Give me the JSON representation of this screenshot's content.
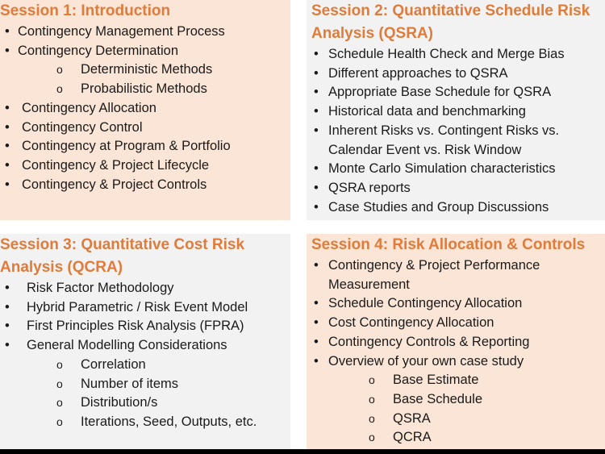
{
  "sessions": [
    {
      "title": "Session 1: Introduction",
      "items": [
        {
          "text": "Contingency Management Process"
        },
        {
          "text": "Contingency Determination",
          "sub": [
            "Deterministic Methods",
            "Probabilistic Methods"
          ]
        },
        {
          "text": "Contingency Allocation"
        },
        {
          "text": "Contingency Control"
        },
        {
          "text": "Contingency at Program & Portfolio"
        },
        {
          "text": "Contingency & Project Lifecycle"
        },
        {
          "text": "Contingency & Project Controls"
        }
      ]
    },
    {
      "title": "Session 2: Quantitative Schedule Risk Analysis (QSRA)",
      "items": [
        {
          "text": "Schedule Health Check and Merge Bias"
        },
        {
          "text": "Different approaches to QSRA"
        },
        {
          "text": "Appropriate Base Schedule for QSRA"
        },
        {
          "text": "Historical data and benchmarking"
        },
        {
          "text": "Inherent Risks vs. Contingent Risks vs. Calendar Event vs. Risk Window"
        },
        {
          "text": "Monte Carlo Simulation characteristics"
        },
        {
          "text": "QSRA reports"
        },
        {
          "text": "Case Studies and Group Discussions"
        }
      ]
    },
    {
      "title": "Session 3: Quantitative Cost Risk Analysis (QCRA)",
      "items": [
        {
          "text": "Risk Factor Methodology"
        },
        {
          "text": "Hybrid Parametric / Risk Event Model"
        },
        {
          "text": "First Principles Risk Analysis (FPRA)"
        },
        {
          "text": "General Modelling Considerations",
          "sub": [
            "Correlation",
            "Number of items",
            "Distribution/s",
            "Iterations, Seed, Outputs, etc."
          ]
        }
      ]
    },
    {
      "title": "Session 4: Risk Allocation & Controls",
      "items": [
        {
          "text": "Contingency & Project Performance Measurement"
        },
        {
          "text": "Schedule Contingency Allocation"
        },
        {
          "text": "Cost Contingency Allocation"
        },
        {
          "text": "Contingency Controls & Reporting"
        },
        {
          "text": "Overview of your own case study",
          "sub": [
            "Base Estimate",
            "Base Schedule",
            "QSRA",
            "QCRA"
          ]
        }
      ]
    }
  ]
}
